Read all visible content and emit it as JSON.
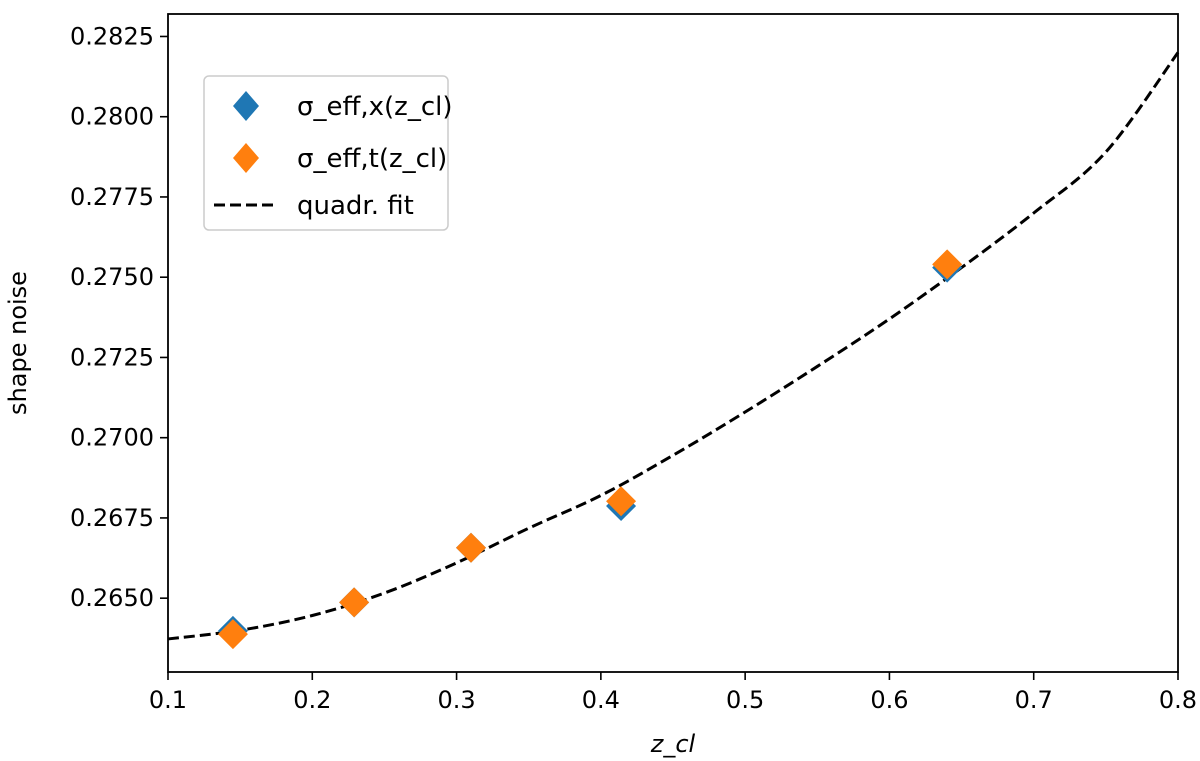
{
  "chart_data": {
    "type": "scatter",
    "title": "",
    "xlabel": "z_cl",
    "ylabel": "shape noise",
    "xlim": [
      0.1,
      0.8
    ],
    "ylim": [
      0.2627,
      0.2832
    ],
    "xticks": [
      "0.1",
      "0.2",
      "0.3",
      "0.4",
      "0.5",
      "0.6",
      "0.7",
      "0.8"
    ],
    "yticks": [
      "0.2650",
      "0.2675",
      "0.2700",
      "0.2725",
      "0.2750",
      "0.2775",
      "0.2800",
      "0.2825"
    ],
    "grid": false,
    "legend_position": "upper-left",
    "series": [
      {
        "name": "σ_eff,x(z_cl)",
        "marker": "diamond",
        "color": "#1f77b4",
        "x": [
          0.145,
          0.229,
          0.31,
          0.414,
          0.64
        ],
        "y": [
          0.26398,
          0.26487,
          0.26657,
          0.26787,
          0.2753
        ]
      },
      {
        "name": "σ_eff,t(z_cl)",
        "marker": "diamond",
        "color": "#ff7f0e",
        "x": [
          0.145,
          0.229,
          0.31,
          0.414,
          0.64
        ],
        "y": [
          0.26388,
          0.26487,
          0.26657,
          0.26802,
          0.2754
        ]
      },
      {
        "name": "quadr. fit",
        "style": "dashed",
        "color": "#000000",
        "x": [
          0.1,
          0.15,
          0.2,
          0.25,
          0.3,
          0.35,
          0.4,
          0.45,
          0.5,
          0.55,
          0.6,
          0.65,
          0.7,
          0.75,
          0.8
        ],
        "y": [
          0.26373,
          0.264,
          0.26446,
          0.26516,
          0.2661,
          0.26718,
          0.2682,
          0.26945,
          0.2708,
          0.27222,
          0.2737,
          0.2753,
          0.277,
          0.2789,
          0.282
        ]
      }
    ]
  }
}
